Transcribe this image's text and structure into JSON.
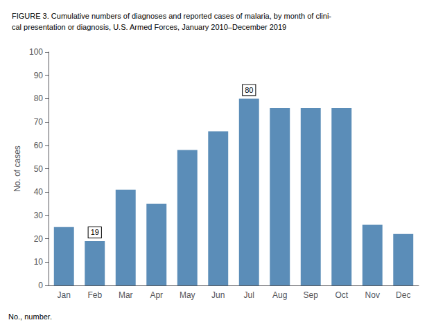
{
  "chart_data": {
    "type": "bar",
    "title": "FIGURE 3. Cumulative numbers of diagnoses and reported cases of malaria, by month of clini-\ncal presentation or diagnosis, U.S. Armed Forces, January 2010–December 2019",
    "categories": [
      "Jan",
      "Feb",
      "Mar",
      "Apr",
      "May",
      "Jun",
      "Jul",
      "Aug",
      "Sep",
      "Oct",
      "Nov",
      "Dec"
    ],
    "values": [
      25,
      19,
      41,
      35,
      58,
      66,
      80,
      76,
      76,
      76,
      26,
      22
    ],
    "color": "#5b8db8",
    "ylabel": "No. of cases",
    "ylim": [
      0,
      100
    ],
    "yticks": [
      0,
      10,
      20,
      30,
      40,
      50,
      60,
      70,
      80,
      90,
      100
    ],
    "grid": false,
    "annotations": [
      {
        "x": "Feb",
        "y": 19,
        "text": "19"
      },
      {
        "x": "Jul",
        "y": 80,
        "text": "80"
      }
    ],
    "footnote": "No., number."
  }
}
